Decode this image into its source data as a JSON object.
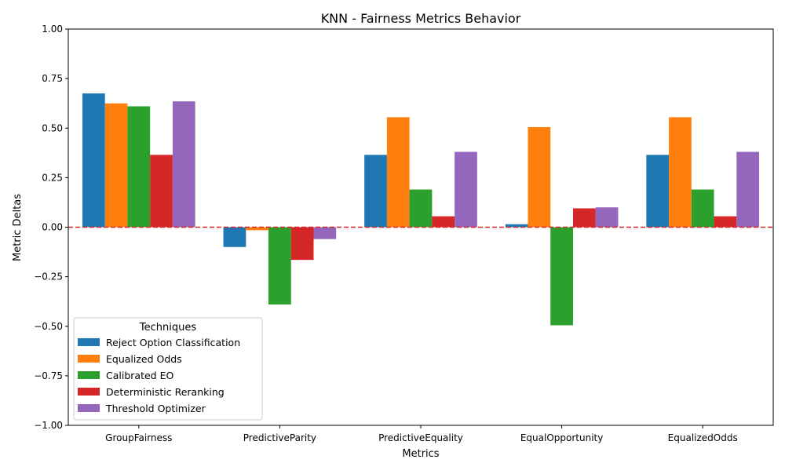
{
  "chart_data": {
    "type": "bar",
    "title": "KNN - Fairness Metrics Behavior",
    "xlabel": "Metrics",
    "ylabel": "Metric Deltas",
    "ylim": [
      -1.0,
      1.0
    ],
    "yticks": [
      "−1.00",
      "−0.75",
      "−0.50",
      "−0.25",
      "0.00",
      "0.25",
      "0.50",
      "0.75",
      "1.00"
    ],
    "ytick_values": [
      -1.0,
      -0.75,
      -0.5,
      -0.25,
      0.0,
      0.25,
      0.5,
      0.75,
      1.0
    ],
    "categories": [
      "GroupFairness",
      "PredictiveParity",
      "PredictiveEquality",
      "EqualOpportunity",
      "EqualizedOdds"
    ],
    "grid": false,
    "reference_line": {
      "y": 0.0,
      "color": "#d62728",
      "style": "dashed"
    },
    "legend": {
      "title": "Techniques",
      "placement": "lower-left"
    },
    "series": [
      {
        "name": "Reject Option Classification",
        "color": "#1f77b4",
        "values": [
          0.675,
          -0.1,
          0.365,
          0.015,
          0.365
        ]
      },
      {
        "name": "Equalized Odds",
        "color": "#ff7f0e",
        "values": [
          0.625,
          -0.015,
          0.555,
          0.505,
          0.555
        ]
      },
      {
        "name": "Calibrated EO",
        "color": "#2ca02c",
        "values": [
          0.61,
          -0.39,
          0.19,
          -0.495,
          0.19
        ]
      },
      {
        "name": "Deterministic Reranking",
        "color": "#d62728",
        "values": [
          0.365,
          -0.165,
          0.055,
          0.095,
          0.055
        ]
      },
      {
        "name": "Threshold Optimizer",
        "color": "#9467bd",
        "values": [
          0.635,
          -0.06,
          0.38,
          0.1,
          0.38
        ]
      }
    ]
  }
}
